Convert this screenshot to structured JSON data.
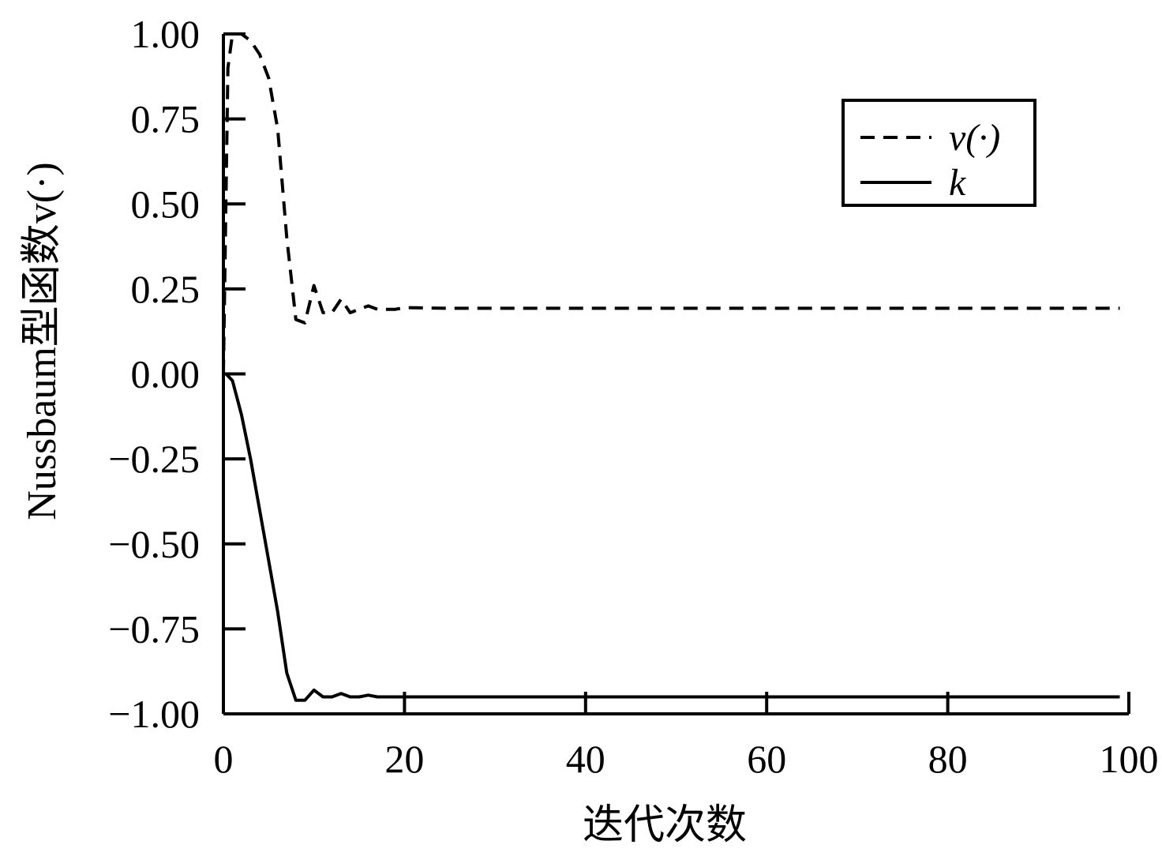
{
  "chart_data": {
    "type": "line",
    "title": "",
    "xlabel": "迭代次数",
    "ylabel": "Nussbaum型函数v(·)",
    "xlim": [
      0,
      100
    ],
    "ylim": [
      -1.0,
      1.0
    ],
    "xticks": [
      0,
      20,
      40,
      60,
      80,
      100
    ],
    "xtick_labels": [
      "0",
      "20",
      "40",
      "60",
      "80",
      "100"
    ],
    "yticks": [
      1.0,
      0.75,
      0.5,
      0.25,
      0.0,
      -0.25,
      -0.5,
      -0.75,
      -1.0
    ],
    "ytick_labels": [
      "1.00",
      "0.75",
      "0.50",
      "0.25",
      "0.00",
      "−0.25",
      "−0.50",
      "−0.75",
      "−1.00"
    ],
    "grid": false,
    "legend_position": "top-right",
    "series": [
      {
        "name": "v(·)",
        "style": "dashed",
        "color": "#000000",
        "x": [
          0,
          0.5,
          1,
          2,
          3,
          4,
          5,
          6,
          7,
          8,
          9,
          10,
          11,
          12,
          13,
          14,
          15,
          16,
          17,
          18,
          19,
          20,
          25,
          30,
          40,
          50,
          60,
          70,
          80,
          90,
          99
        ],
        "y": [
          0.0,
          0.9,
          1.0,
          1.0,
          0.98,
          0.94,
          0.87,
          0.72,
          0.4,
          0.16,
          0.15,
          0.26,
          0.18,
          0.18,
          0.22,
          0.18,
          0.19,
          0.2,
          0.19,
          0.19,
          0.19,
          0.195,
          0.193,
          0.193,
          0.193,
          0.193,
          0.193,
          0.193,
          0.193,
          0.193,
          0.193
        ]
      },
      {
        "name": "k",
        "style": "solid",
        "color": "#000000",
        "x": [
          0,
          0.3,
          1,
          2,
          3,
          4,
          5,
          6,
          7,
          8,
          9,
          10,
          11,
          12,
          13,
          14,
          15,
          16,
          17,
          18,
          19,
          20,
          25,
          30,
          40,
          50,
          60,
          70,
          80,
          90,
          99
        ],
        "y": [
          0.0,
          0.0,
          -0.02,
          -0.12,
          -0.25,
          -0.4,
          -0.55,
          -0.7,
          -0.88,
          -0.96,
          -0.96,
          -0.93,
          -0.95,
          -0.95,
          -0.94,
          -0.95,
          -0.95,
          -0.945,
          -0.95,
          -0.95,
          -0.95,
          -0.95,
          -0.95,
          -0.95,
          -0.95,
          -0.95,
          -0.95,
          -0.95,
          -0.95,
          -0.95,
          -0.95
        ]
      }
    ]
  }
}
